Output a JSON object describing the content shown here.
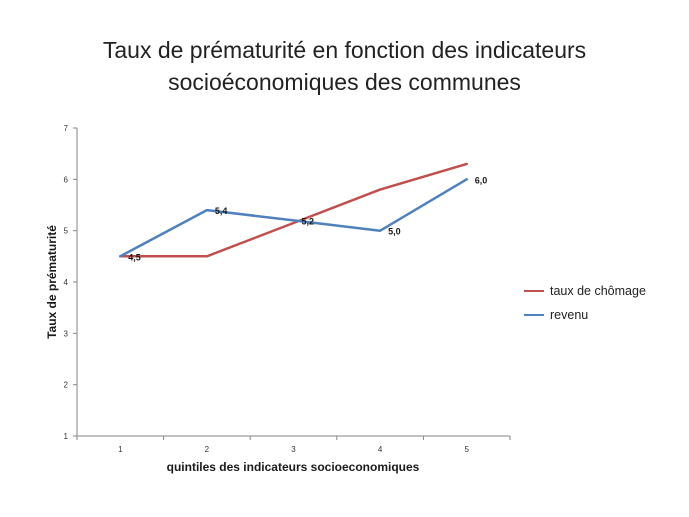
{
  "colors": {
    "chomage": "#C0504D",
    "revenu": "#4F81BD",
    "axis": "#868686",
    "grid": "#d9d9d9"
  },
  "chart_data": {
    "type": "line",
    "title_lines": [
      "Taux de prématurité en fonction des indicateurs",
      "socioéconomiques des communes"
    ],
    "title": "Taux de prématurité en fonction des indicateurs socioéconomiques des communes",
    "xlabel": "quintiles des indicateurs socioeconomiques",
    "ylabel": "Taux de prématurité",
    "x": [
      1,
      2,
      3,
      4,
      5
    ],
    "x_tick_labels": [
      "1",
      "2",
      "3",
      "4",
      "5"
    ],
    "ylim": [
      1,
      7
    ],
    "y_tick_labels": [
      "1",
      "2",
      "3",
      "4",
      "5",
      "6",
      "7"
    ],
    "grid": false,
    "legend_position": "right",
    "series": [
      {
        "name": "taux de chômage",
        "color": "#C0504D",
        "values": [
          4.5,
          4.5,
          5.15,
          5.8,
          6.3
        ],
        "labels": []
      },
      {
        "name": "revenu",
        "color": "#4F81BD",
        "values": [
          4.5,
          5.4,
          5.2,
          5.0,
          6.0
        ],
        "labels": [
          "4,5",
          "5,4",
          "5,2",
          "5,0",
          "6,0"
        ]
      }
    ]
  }
}
